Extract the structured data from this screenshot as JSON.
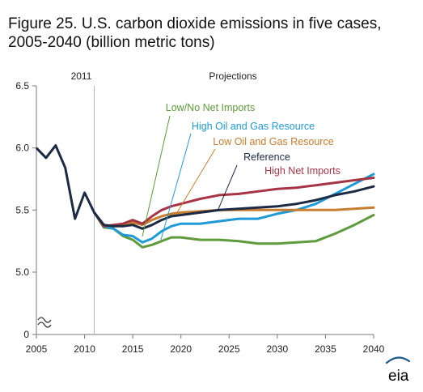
{
  "chart_data": {
    "type": "line",
    "title": "Figure 25. U.S. carbon dioxide emissions in five cases, 2005-2040 (billion metric tons)",
    "xlabel": "",
    "ylabel": "",
    "xlim": [
      2005,
      2040
    ],
    "ylim": [
      5.0,
      6.5
    ],
    "y_axis_origin_label": "0",
    "y_axis_break": true,
    "x_ticks": [
      2005,
      2010,
      2015,
      2020,
      2025,
      2030,
      2035,
      2040
    ],
    "y_ticks": [
      5.0,
      5.5,
      6.0,
      6.5
    ],
    "y_tick_labels": [
      "5.0",
      "5.5",
      "6.0",
      "6.5"
    ],
    "grid": false,
    "divider": {
      "year": 2011,
      "label": "2011",
      "right_label": "Projections"
    },
    "history": {
      "name": "",
      "color": "#1c2a44",
      "x": [
        2005,
        2006,
        2007,
        2008,
        2009,
        2010,
        2011
      ],
      "y": [
        6.0,
        5.92,
        6.02,
        5.84,
        5.43,
        5.64,
        5.48
      ]
    },
    "series": [
      {
        "name": "Low/No Net Imports",
        "color": "#5f9a3c",
        "x": [
          2011,
          2012,
          2013,
          2014,
          2015,
          2016,
          2017,
          2018,
          2019,
          2020,
          2022,
          2024,
          2026,
          2028,
          2030,
          2032,
          2034,
          2036,
          2038,
          2040
        ],
        "y": [
          5.48,
          5.36,
          5.35,
          5.29,
          5.26,
          5.2,
          5.22,
          5.25,
          5.28,
          5.28,
          5.26,
          5.26,
          5.25,
          5.23,
          5.23,
          5.24,
          5.25,
          5.31,
          5.38,
          5.46
        ]
      },
      {
        "name": "High Oil and Gas Resource",
        "color": "#1f9ad7",
        "x": [
          2011,
          2012,
          2013,
          2014,
          2015,
          2016,
          2017,
          2018,
          2019,
          2020,
          2022,
          2024,
          2026,
          2028,
          2030,
          2032,
          2034,
          2036,
          2038,
          2040
        ],
        "y": [
          5.48,
          5.37,
          5.35,
          5.3,
          5.29,
          5.24,
          5.27,
          5.33,
          5.37,
          5.39,
          5.39,
          5.41,
          5.43,
          5.43,
          5.47,
          5.5,
          5.55,
          5.63,
          5.71,
          5.79
        ]
      },
      {
        "name": "Low Oil and Gas Resource",
        "color": "#c87d2f",
        "x": [
          2011,
          2012,
          2013,
          2014,
          2015,
          2016,
          2017,
          2018,
          2019,
          2020,
          2022,
          2024,
          2026,
          2028,
          2030,
          2032,
          2034,
          2036,
          2038,
          2040
        ],
        "y": [
          5.48,
          5.38,
          5.37,
          5.38,
          5.4,
          5.38,
          5.42,
          5.45,
          5.47,
          5.48,
          5.49,
          5.5,
          5.5,
          5.5,
          5.5,
          5.5,
          5.5,
          5.5,
          5.51,
          5.52
        ]
      },
      {
        "name": "Reference",
        "color": "#1c2a44",
        "x": [
          2011,
          2012,
          2013,
          2014,
          2015,
          2016,
          2017,
          2018,
          2019,
          2020,
          2022,
          2024,
          2026,
          2028,
          2030,
          2032,
          2034,
          2036,
          2038,
          2040
        ],
        "y": [
          5.48,
          5.38,
          5.37,
          5.37,
          5.38,
          5.35,
          5.38,
          5.42,
          5.45,
          5.46,
          5.48,
          5.5,
          5.51,
          5.52,
          5.53,
          5.55,
          5.58,
          5.62,
          5.65,
          5.69
        ]
      },
      {
        "name": "High Net Imports",
        "color": "#a73445",
        "x": [
          2011,
          2012,
          2013,
          2014,
          2015,
          2016,
          2017,
          2018,
          2019,
          2020,
          2022,
          2024,
          2026,
          2028,
          2030,
          2032,
          2034,
          2036,
          2038,
          2040
        ],
        "y": [
          5.48,
          5.37,
          5.38,
          5.39,
          5.42,
          5.39,
          5.45,
          5.5,
          5.53,
          5.55,
          5.59,
          5.62,
          5.63,
          5.65,
          5.67,
          5.68,
          5.7,
          5.72,
          5.74,
          5.76
        ]
      }
    ],
    "annotations": [
      "Low/No Net Imports",
      "High Oil and Gas Resource",
      "Low Oil and Gas Resource",
      "Reference",
      "High Net Imports"
    ]
  },
  "logo": {
    "text": "eia",
    "color": "#1a5a8a"
  }
}
